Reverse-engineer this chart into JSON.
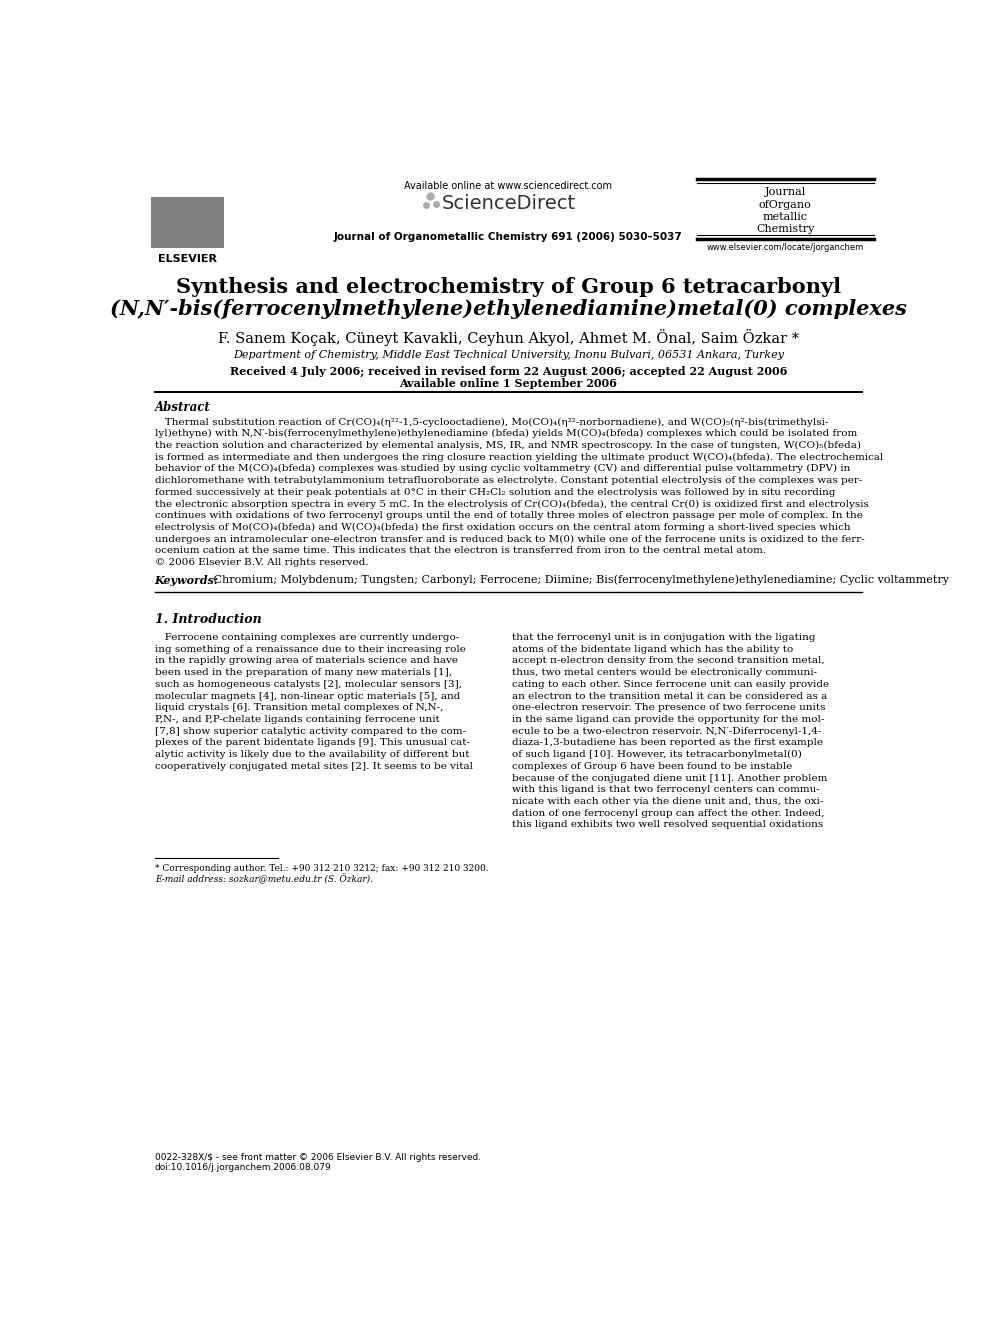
{
  "figsize": [
    9.92,
    13.23
  ],
  "dpi": 100,
  "bg_color": "#ffffff",
  "header": {
    "available_online": "Available online at www.sciencedirect.com",
    "sciencedirect": "ScienceDirect",
    "journal_line": "Journal of Organometallic Chemistry 691 (2006) 5030–5037",
    "journal_name_lines": [
      "Journal",
      "ofOrgano",
      "metallic",
      "Chemistry"
    ],
    "elsevier": "ELSEVIER",
    "website": "www.elsevier.com/locate/jorganchem"
  },
  "title_lines": [
    "Synthesis and electrochemistry of Group 6 tetracarbonyl",
    "(N,N′-bis(ferrocenylmethylene)ethylenediamine)metal(0) complexes"
  ],
  "authors": "F. Sanem Koçak, Cüneyt Kavakli, Ceyhun Akyol, Ahmet M. Önal, Saim Özkar *",
  "affiliation": "Department of Chemistry, Middle East Technical University, Inonu Bulvari, 06531 Ankara, Turkey",
  "received": "Received 4 July 2006; received in revised form 22 August 2006; accepted 22 August 2006",
  "available": "Available online 1 September 2006",
  "abstract_label": "Abstract",
  "abstract_lines": [
    "   Thermal substitution reaction of Cr(CO)₄(η²²-1,5-cyclooctadiene), Mo(CO)₄(η²²-norbornadiene), and W(CO)₅(η²-bis(trimethylsi-",
    "lyl)ethyne) with N,N′-bis(ferrocenylmethylene)ethylenediamine (bfeda) yields M(CO)₄(bfeda) complexes which could be isolated from",
    "the reaction solution and characterized by elemental analysis, MS, IR, and NMR spectroscopy. In the case of tungsten, W(CO)₅(bfeda)",
    "is formed as intermediate and then undergoes the ring closure reaction yielding the ultimate product W(CO)₄(bfeda). The electrochemical",
    "behavior of the M(CO)₄(bfeda) complexes was studied by using cyclic voltammetry (CV) and differential pulse voltammetry (DPV) in",
    "dichloromethane with tetrabutylammonium tetrafluoroborate as electrolyte. Constant potential electrolysis of the complexes was per-",
    "formed successively at their peak potentials at 0°C in their CH₂Cl₂ solution and the electrolysis was followed by in situ recording",
    "the electronic absorption spectra in every 5 mC. In the electrolysis of Cr(CO)₄(bfeda), the central Cr(0) is oxidized first and electrolysis",
    "continues with oxidations of two ferrocenyl groups until the end of totally three moles of electron passage per mole of complex. In the",
    "electrolysis of Mo(CO)₄(bfeda) and W(CO)₄(bfeda) the first oxidation occurs on the central atom forming a short-lived species which",
    "undergoes an intramolecular one-electron transfer and is reduced back to M(0) while one of the ferrocene units is oxidized to the ferr-",
    "ocenium cation at the same time. This indicates that the electron is transferred from iron to the central metal atom.",
    "© 2006 Elsevier B.V. All rights reserved."
  ],
  "keywords_label": "Keywords:",
  "keywords_text": " Chromium; Molybdenum; Tungsten; Carbonyl; Ferrocene; Diimine; Bis(ferrocenylmethylene)ethylenediamine; Cyclic voltammetry",
  "section1_title": "1. Introduction",
  "col1_lines": [
    "   Ferrocene containing complexes are currently undergo-",
    "ing something of a renaissance due to their increasing role",
    "in the rapidly growing area of materials science and have",
    "been used in the preparation of many new materials [1],",
    "such as homogeneous catalysts [2], molecular sensors [3],",
    "molecular magnets [4], non-linear optic materials [5], and",
    "liquid crystals [6]. Transition metal complexes of N,N-,",
    "P,N-, and P,P-chelate ligands containing ferrocene unit",
    "[7,8] show superior catalytic activity compared to the com-",
    "plexes of the parent bidentate ligands [9]. This unusual cat-",
    "alytic activity is likely due to the availability of different but",
    "cooperatively conjugated metal sites [2]. It seems to be vital"
  ],
  "col2_lines": [
    "that the ferrocenyl unit is in conjugation with the ligating",
    "atoms of the bidentate ligand which has the ability to",
    "accept π-electron density from the second transition metal,",
    "thus, two metal centers would be electronically communi-",
    "cating to each other. Since ferrocene unit can easily provide",
    "an electron to the transition metal it can be considered as a",
    "one-electron reservoir. The presence of two ferrocene units",
    "in the same ligand can provide the opportunity for the mol-",
    "ecule to be a two-electron reservoir. N,N′-Diferrocenyl-1,4-",
    "diaza-1,3-butadiene has been reported as the first example",
    "of such ligand [10]. However, its tetracarbonylmetal(0)",
    "complexes of Group 6 have been found to be instable",
    "because of the conjugated diene unit [11]. Another problem",
    "with this ligand is that two ferrocenyl centers can commu-",
    "nicate with each other via the diene unit and, thus, the oxi-",
    "dation of one ferrocenyl group can affect the other. Indeed,",
    "this ligand exhibits two well resolved sequential oxidations"
  ],
  "footnote_star": "* Corresponding author. Tel.: +90 312 210 3212; fax: +90 312 210 3200.",
  "footnote_email": "E-mail address: sozkar@metu.edu.tr (S. Özkar).",
  "footer_issn": "0022-328X/$ - see front matter © 2006 Elsevier B.V. All rights reserved.",
  "footer_doi": "doi:10.1016/j.jorganchem.2006.08.079"
}
